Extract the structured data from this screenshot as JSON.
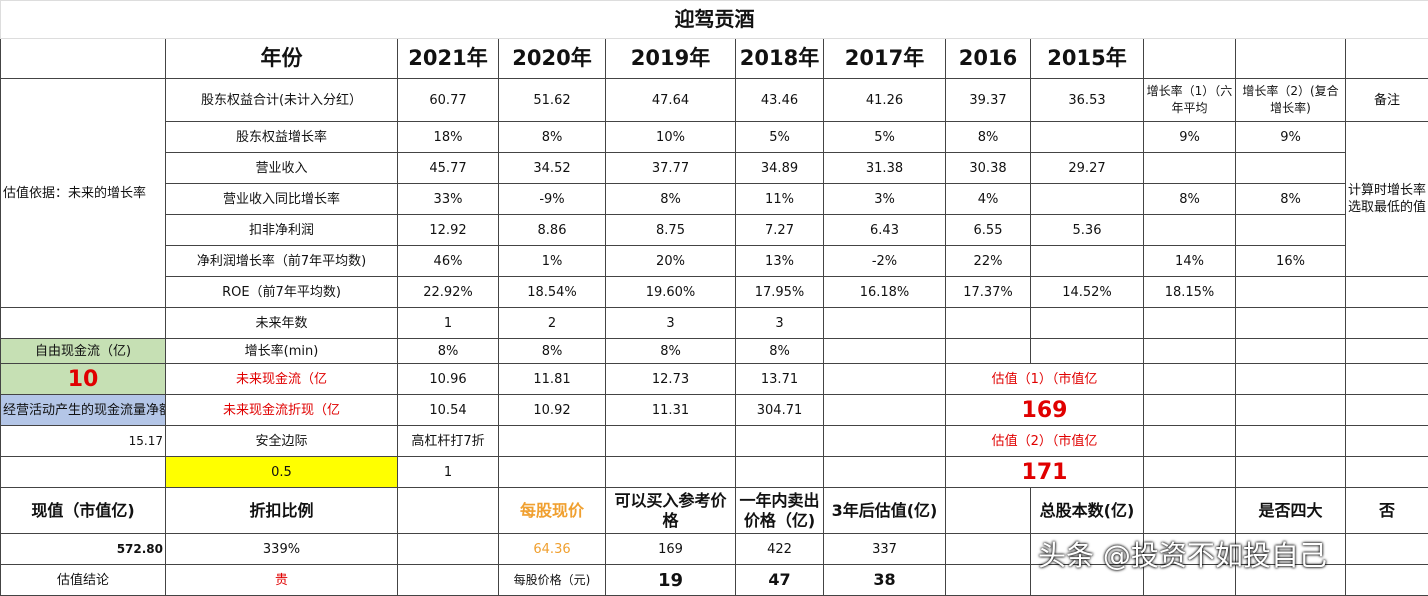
{
  "title": "迎驾贡酒",
  "rows": [
    [
      "年份",
      "2021年",
      "2020年",
      "2019年",
      "2018年",
      "2017年",
      "2016",
      "2015年"
    ],
    [
      "估值依据：未来的增长率",
      "股东权益合计(未计入分红）",
      "60.77",
      "51.62",
      "47.64",
      "43.46",
      "41.26",
      "39.37",
      "36.53",
      "增长率（1）（六年平均",
      "增长率（2）(复合增长率)",
      "备注"
    ],
    [
      "股东权益增长率",
      "18%",
      "8%",
      "10%",
      "5%",
      "5%",
      "8%",
      "9%",
      "9%",
      "计算时增长率选取最低的值"
    ],
    [
      "营业收入",
      "45.77",
      "34.52",
      "37.77",
      "34.89",
      "31.38",
      "30.38",
      "29.27"
    ],
    [
      "营业收入同比增长率",
      "33%",
      "-9%",
      "8%",
      "11%",
      "3%",
      "4%",
      "8%",
      "8%"
    ],
    [
      "扣非净利润",
      "12.92",
      "8.86",
      "8.75",
      "7.27",
      "6.43",
      "6.55",
      "5.36"
    ],
    [
      "净利润增长率（前7年平均数)",
      "46%",
      "1%",
      "20%",
      "13%",
      "-2%",
      "22%",
      "14%",
      "16%"
    ],
    [
      "ROE（前7年平均数)",
      "22.92%",
      "18.54%",
      "19.60%",
      "17.95%",
      "16.18%",
      "17.37%",
      "14.52%",
      "18.15%"
    ],
    [
      "未来年数",
      "1",
      "2",
      "3",
      "3"
    ],
    [
      "自由现金流（亿)",
      "增长率(min)",
      "8%",
      "8%",
      "8%",
      "8%"
    ],
    [
      "10",
      "未来现金流（亿",
      "10.96",
      "11.81",
      "12.73",
      "13.71",
      "估值（1）（市值亿"
    ],
    [
      "经营活动产生的现金流量净额",
      "未来现金流折现（亿",
      "10.54",
      "10.92",
      "11.31",
      "304.71",
      "169"
    ],
    [
      "15.17",
      "安全边际",
      "高杠杆打7折",
      "估值（2）（市值亿"
    ],
    [
      "0.5",
      "1",
      "171"
    ],
    [
      "现值（市值亿)",
      "折扣比例",
      "每股现价",
      "可以买入参考价格",
      "一年内卖出价格（亿)",
      "3年后估值(亿)",
      "总股本数(亿)",
      "是否四大",
      "否"
    ],
    [
      "572.80",
      "339%",
      "64.36",
      "169",
      "422",
      "337"
    ],
    [
      "估值结论",
      "贵",
      "每股价格（元)",
      "19",
      "47",
      "38"
    ]
  ],
  "watermark": "头条 @投资不如投自己"
}
